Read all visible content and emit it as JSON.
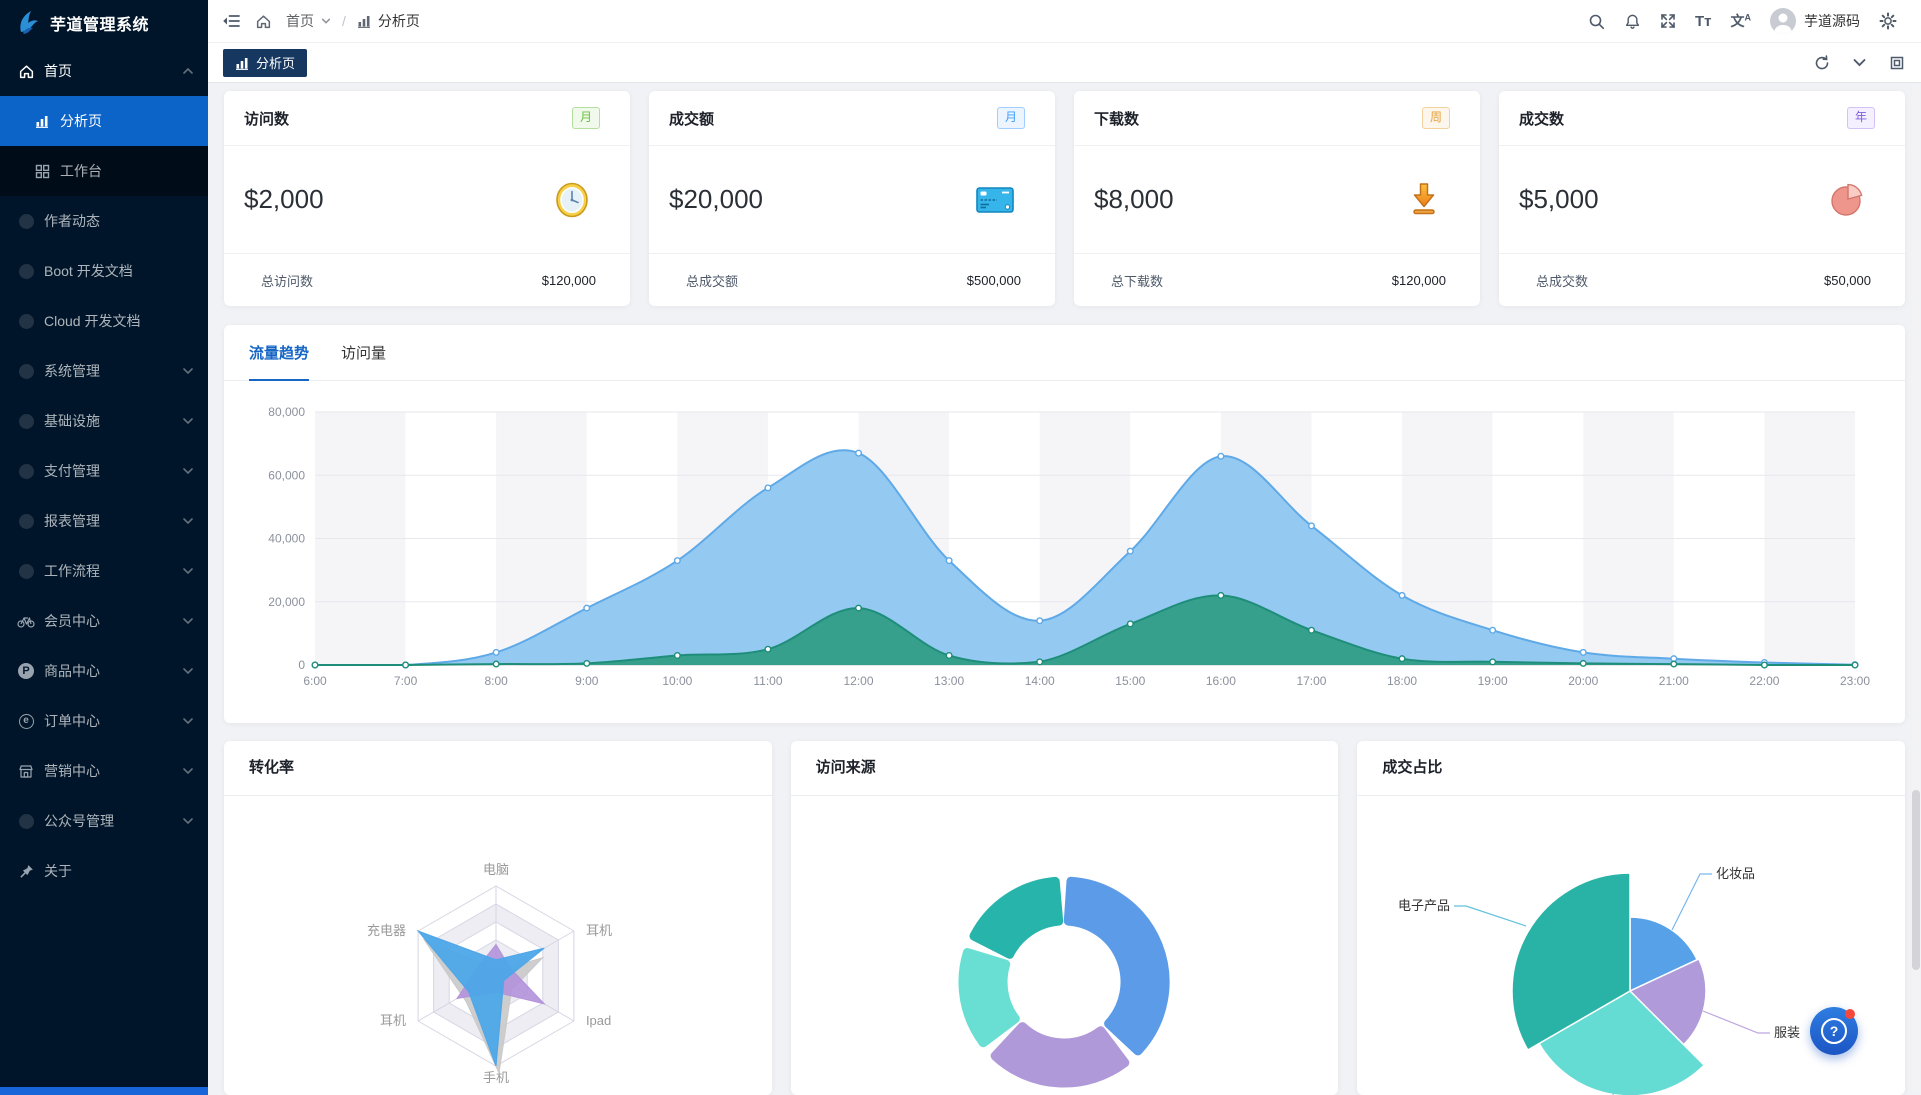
{
  "app": {
    "title": "芋道管理系统"
  },
  "colors": {
    "sidebar_bg": "#001529",
    "submenu_bg": "#000c17",
    "active_menu_item": "#0c63c8",
    "tag_tab_bg": "#16375f",
    "accent": "#1766c4",
    "content_bg": "#f1f2f5"
  },
  "sidebar": {
    "items": [
      {
        "label": "首页",
        "icon": "home",
        "level": "root",
        "chevron": "up"
      },
      {
        "label": "分析页",
        "icon": "bar-chart",
        "level": "sub",
        "active": true
      },
      {
        "label": "工作台",
        "icon": "grid",
        "level": "sub"
      },
      {
        "label": "作者动态",
        "icon": "dot",
        "level": "top"
      },
      {
        "label": "Boot 开发文档",
        "icon": "dot",
        "level": "top"
      },
      {
        "label": "Cloud 开发文档",
        "icon": "dot",
        "level": "top"
      },
      {
        "label": "系统管理",
        "icon": "dot",
        "level": "top",
        "chevron": "down"
      },
      {
        "label": "基础设施",
        "icon": "dot",
        "level": "top",
        "chevron": "down"
      },
      {
        "label": "支付管理",
        "icon": "dot",
        "level": "top",
        "chevron": "down"
      },
      {
        "label": "报表管理",
        "icon": "dot",
        "level": "top",
        "chevron": "down"
      },
      {
        "label": "工作流程",
        "icon": "dot",
        "level": "top",
        "chevron": "down"
      },
      {
        "label": "会员中心",
        "icon": "bike",
        "level": "top",
        "chevron": "down"
      },
      {
        "label": "商品中心",
        "icon": "p-circle",
        "level": "top",
        "chevron": "down"
      },
      {
        "label": "订单中心",
        "icon": "e-circle",
        "level": "top",
        "chevron": "down"
      },
      {
        "label": "营销中心",
        "icon": "shop",
        "level": "top",
        "chevron": "down"
      },
      {
        "label": "公众号管理",
        "icon": "dot",
        "level": "top",
        "chevron": "down"
      },
      {
        "label": "关于",
        "icon": "pin",
        "level": "top"
      }
    ]
  },
  "header": {
    "breadcrumb": {
      "home": "首页",
      "separator": "/",
      "current": "分析页"
    },
    "font_icon_label": "Tт",
    "lang_icon_label": "文",
    "lang_icon_sub": "A",
    "user_name": "芋道源码"
  },
  "tabbar": {
    "active_tab": "分析页"
  },
  "stat_cards": [
    {
      "title": "访问数",
      "badge": "月",
      "badge_text": "#67c23a",
      "badge_bg": "#f0f9eb",
      "badge_border": "#b3e19d",
      "value": "$2,000",
      "icon": "clock",
      "footer_label": "总访问数",
      "footer_value": "$120,000"
    },
    {
      "title": "成交额",
      "badge": "月",
      "badge_text": "#409eff",
      "badge_bg": "#ecf5ff",
      "badge_border": "#a0cfff",
      "value": "$20,000",
      "icon": "card",
      "footer_label": "总成交额",
      "footer_value": "$500,000"
    },
    {
      "title": "下载数",
      "badge": "周",
      "badge_text": "#e6a23c",
      "badge_bg": "#fdf6ec",
      "badge_border": "#f3d19e",
      "value": "$8,000",
      "icon": "download",
      "footer_label": "总下载数",
      "footer_value": "$120,000"
    },
    {
      "title": "成交数",
      "badge": "年",
      "badge_text": "#7b5ce0",
      "badge_bg": "#f5f0ff",
      "badge_border": "#d3c2f5",
      "value": "$5,000",
      "icon": "pie",
      "footer_label": "总成交数",
      "footer_value": "$50,000"
    }
  ],
  "trend": {
    "tabs": [
      "流量趋势",
      "访问量"
    ],
    "active": 0
  },
  "panels": [
    {
      "title": "转化率"
    },
    {
      "title": "访问来源"
    },
    {
      "title": "成交占比"
    }
  ],
  "fab": {
    "glyph": "?"
  },
  "chart_data": [
    {
      "id": "traffic_trend",
      "type": "area",
      "title": "流量趋势",
      "x": [
        "6:00",
        "7:00",
        "8:00",
        "9:00",
        "10:00",
        "11:00",
        "12:00",
        "13:00",
        "14:00",
        "15:00",
        "16:00",
        "17:00",
        "18:00",
        "19:00",
        "20:00",
        "21:00",
        "22:00",
        "23:00"
      ],
      "ylim": [
        0,
        80000
      ],
      "y_ticks": [
        "0",
        "20,000",
        "40,000",
        "60,000",
        "80,000"
      ],
      "grid": true,
      "legend_position": "none",
      "series": [
        {
          "name": "series-blue",
          "color": "#5FA9E7",
          "fill": "#8BC5F1",
          "values": [
            0,
            0,
            4000,
            18000,
            33000,
            56000,
            67000,
            33000,
            14000,
            36000,
            66000,
            44000,
            22000,
            11000,
            4000,
            2000,
            800,
            100
          ]
        },
        {
          "name": "series-green",
          "color": "#1E8E7A",
          "fill": "#2F9C84",
          "values": [
            0,
            0,
            300,
            500,
            3000,
            5000,
            18000,
            3000,
            1000,
            13000,
            22000,
            11000,
            2000,
            1000,
            500,
            300,
            0,
            0
          ]
        }
      ]
    },
    {
      "id": "conversion",
      "type": "radar",
      "title": "转化率",
      "indicators": [
        "电脑",
        "耳机",
        "Ipad",
        "手机",
        "耳机",
        "充电器"
      ],
      "max": 100,
      "levels": 5,
      "series": [
        {
          "name": "shadow-gray",
          "color": "#c9c9c9",
          "opacity": 0.9,
          "values": [
            14,
            56,
            16,
            100,
            42,
            96
          ]
        },
        {
          "name": "purple",
          "color": "#b292da",
          "opacity": 0.9,
          "values": [
            35,
            18,
            62,
            18,
            50,
            22
          ]
        },
        {
          "name": "blue",
          "color": "#4da6e8",
          "opacity": 0.95,
          "values": [
            18,
            62,
            10,
            100,
            35,
            100
          ]
        }
      ]
    },
    {
      "id": "visit_source",
      "type": "donut",
      "title": "访问来源",
      "inner_radius": 57,
      "outer_radius": 105,
      "segments": [
        {
          "name": "segment-blue",
          "color": "#5B9BE8",
          "percent": 39,
          "from": 2,
          "to": 135
        },
        {
          "name": "segment-purple",
          "color": "#AF99D9",
          "percent": 25,
          "from": 141,
          "to": 225
        },
        {
          "name": "segment-cyan",
          "color": "#68DFD2",
          "percent": 17,
          "from": 231,
          "to": 289
        },
        {
          "name": "segment-teal",
          "color": "#27B5AB",
          "percent": 19,
          "from": 295,
          "to": 357
        }
      ]
    },
    {
      "id": "deal_share",
      "type": "rose_pie",
      "title": "成交占比",
      "slices": [
        {
          "label": "化妆品",
          "color": "#57A1E8",
          "percent": 18,
          "from": 0,
          "to": 65,
          "radius": 74
        },
        {
          "label": "服装",
          "color": "#B09AD9",
          "percent": 19,
          "from": 65,
          "to": 135,
          "radius": 76
        },
        {
          "label": "",
          "color": "#64DBD3",
          "percent": 29,
          "from": 135,
          "to": 240,
          "radius": 105
        },
        {
          "label": "电子产品",
          "color": "#28B3A6",
          "percent": 33,
          "from": 240,
          "to": 360,
          "radius": 118
        }
      ]
    }
  ]
}
